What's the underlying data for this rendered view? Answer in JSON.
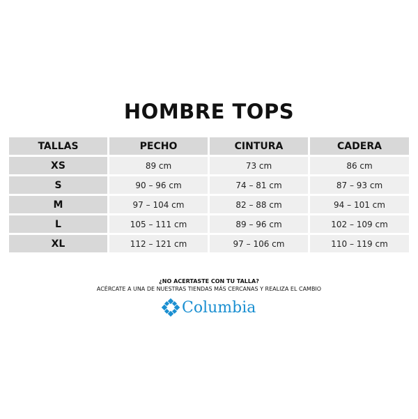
{
  "title": "HOMBRE TOPS",
  "table": {
    "headers": [
      "TALLAS",
      "PECHO",
      "CINTURA",
      "CADERA"
    ],
    "rows": [
      [
        "XS",
        "89 cm",
        "73 cm",
        "86 cm"
      ],
      [
        "S",
        "90 – 96 cm",
        "74 – 81 cm",
        "87 – 93 cm"
      ],
      [
        "M",
        "97 – 104 cm",
        "82 – 88 cm",
        "94 – 101 cm"
      ],
      [
        "L",
        "105 – 111 cm",
        "89 – 96 cm",
        "102 – 109 cm"
      ],
      [
        "XL",
        "112 – 121 cm",
        "97 – 106 cm",
        "110 – 119 cm"
      ]
    ]
  },
  "footer": {
    "question": "¿NO ACERTASTE CON TU TALLA?",
    "message": "ACÉRCATE A UNA DE NUESTRAS TIENDAS MÁS CERCANAS Y REALIZA EL CAMBIO"
  },
  "logo": {
    "text": "Columbia",
    "icon": "columbia-diamond-logo-icon",
    "color": "#1a8fd1"
  }
}
